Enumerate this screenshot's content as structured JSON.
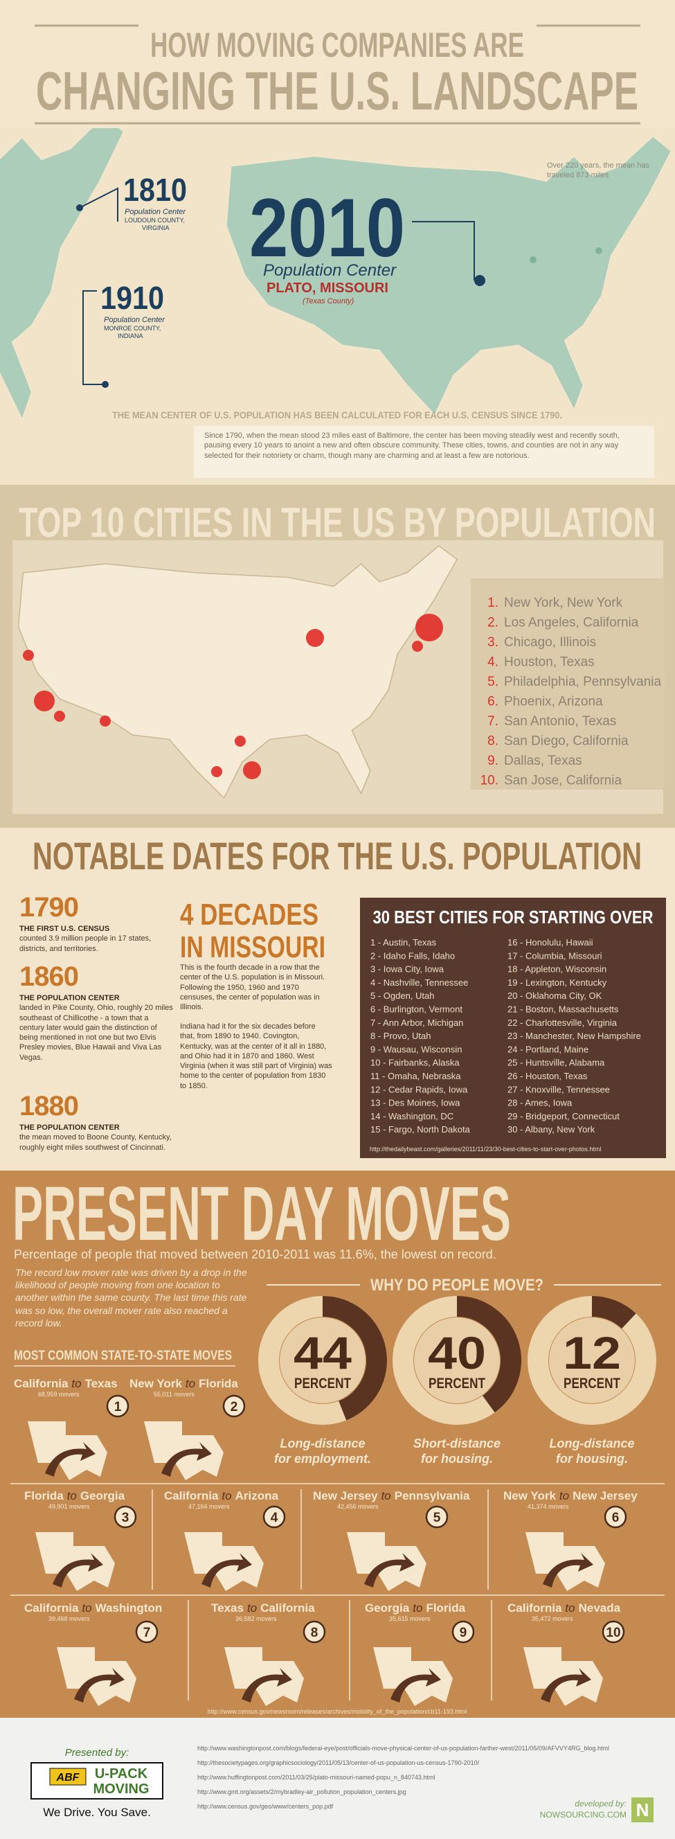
{
  "header": {
    "line1": "HOW MOVING COMPANIES ARE",
    "line2": "CHANGING THE U.S. LANDSCAPE"
  },
  "center": {
    "c1810": {
      "year": "1810",
      "label": "Population Center",
      "place1": "LOUDOUN COUNTY,",
      "place2": "VIRGINIA"
    },
    "c1910": {
      "year": "1910",
      "label": "Population Center",
      "place1": "MONROE COUNTY,",
      "place2": "INDIANA"
    },
    "c2010": {
      "year": "2010",
      "label": "Population Center",
      "place": "PLATO, MISSOURI",
      "county": "(Texas County)"
    },
    "note": "Over 220 years, the mean has traveled 873 miles",
    "heading": "THE MEAN CENTER OF U.S. POPULATION HAS BEEN CALCULATED FOR EACH U.S. CENSUS SINCE 1790.",
    "body": "Since 1790, when the mean stood 23 miles east of Baltimore, the center has been moving steadily west and recently south, pausing every 10 years to anoint a new and often obscure community. These cities, towns, and counties are not in any way selected for their notoriety or charm, though many are charming and at least a few are notorious."
  },
  "top10": {
    "title": "TOP 10 CITIES IN THE US BY POPULATION",
    "cities": [
      {
        "rank": "1.",
        "name": "New York, New York"
      },
      {
        "rank": "2.",
        "name": "Los Angeles, California"
      },
      {
        "rank": "3.",
        "name": "Chicago, Illinois"
      },
      {
        "rank": "4.",
        "name": "Houston, Texas"
      },
      {
        "rank": "5.",
        "name": "Philadelphia, Pennsylvania"
      },
      {
        "rank": "6.",
        "name": "Phoenix, Arizona"
      },
      {
        "rank": "7.",
        "name": "San Antonio, Texas"
      },
      {
        "rank": "8.",
        "name": "San Diego, California"
      },
      {
        "rank": "9.",
        "name": "Dallas, Texas"
      },
      {
        "rank": "10.",
        "name": "San Jose, California"
      }
    ]
  },
  "notable": {
    "title": "NOTABLE DATES FOR THE U.S. POPULATION",
    "entries": [
      {
        "year": "1790",
        "heading": "THE FIRST U.S. CENSUS",
        "text": "counted 3.9 million people in 17 states, districts, and territories."
      },
      {
        "year": "1860",
        "heading": "THE POPULATION CENTER",
        "text": "landed in Pike County, Ohio, roughly 20 miles southeast of Chillicothe - a town that a century later would gain the distinction of being mentioned in not one but two Elvis Presley movies, Blue Hawaii and Viva Las Vegas."
      },
      {
        "year": "1880",
        "heading": "THE POPULATION CENTER",
        "text": "the mean moved to Boone County, Kentucky, roughly eight miles southwest of Cincinnati."
      }
    ],
    "missouri": {
      "title1": "4 DECADES",
      "title2": "IN MISSOURI",
      "p1": "This is the fourth decade in a row that the center of the U.S. population is in Missouri. Following the 1950, 1960 and 1970 censuses, the center of population was in Illinois.",
      "p2": "Indiana had it for the six decades before that, from 1890 to 1940. Covington, Kentucky, was at the center of it all in 1880, and Ohio had it in 1870 and 1860. West Virginia (when it was still part of Virginia) was home to the center of population from 1830 to 1850."
    },
    "best": {
      "title": "30 BEST CITIES FOR STARTING OVER",
      "items": [
        "1 - Austin, Texas",
        "2 - Idaho Falls, Idaho",
        "3 - Iowa City, Iowa",
        "4 - Nashville, Tennessee",
        "5 - Ogden, Utah",
        "6 - Burlington, Vermont",
        "7 - Ann Arbor, Michigan",
        "8 - Provo, Utah",
        "9 - Wausau, Wisconsin",
        "10 - Fairbanks, Alaska",
        "11 - Omaha, Nebraska",
        "12 - Cedar Rapids, Iowa",
        "13 - Des Moines, Iowa",
        "14 - Washington, DC",
        "15 - Fargo, North Dakota",
        "16 - Honolulu, Hawaii",
        "17 - Columbia, Missouri",
        "18 - Appleton, Wisconsin",
        "19 - Lexington, Kentucky",
        "20 - Oklahoma City, OK",
        "21 - Boston, Massachusetts",
        "22 - Charlottesville, Virginia",
        "23 - Manchester, New Hampshire",
        "24 - Portland, Maine",
        "25 - Huntsville, Alabama",
        "26 - Houston, Texas",
        "27 - Knoxville, Tennessee",
        "28 - Ames, Iowa",
        "29 - Bridgeport, Connecticut",
        "30 - Albany, New York"
      ],
      "source": "http://thedailybeast.com/galleries/2011/11/23/30-best-cities-to-start-over-photos.html"
    }
  },
  "present": {
    "title": "PRESENT DAY MOVES",
    "subtitle": "Percentage of people that moved between 2010-2011 was 11.6%, the lowest on record.",
    "body": "The record low mover rate was driven by a drop in the likelihood of people moving from one location to another within the same county. The last time this rate was so low, the overall mover rate also reached a record low.",
    "why": {
      "title": "WHY DO PEOPLE MOVE?",
      "reasons": [
        {
          "value": 44,
          "unit": "PERCENT",
          "label1": "Long-distance",
          "label2": "for employment."
        },
        {
          "value": 40,
          "unit": "PERCENT",
          "label1": "Short-distance",
          "label2": "for housing."
        },
        {
          "value": 12,
          "unit": "PERCENT",
          "label1": "Long-distance",
          "label2": "for housing."
        }
      ]
    },
    "common_title": "MOST COMMON STATE-TO-STATE MOVES",
    "moves": [
      {
        "from": "California",
        "joiner": "to",
        "to": "Texas",
        "movers": "68,959 movers",
        "rank": "1"
      },
      {
        "from": "New York",
        "joiner": "to",
        "to": "Florida",
        "movers": "55,011 movers",
        "rank": "2"
      },
      {
        "from": "Florida",
        "joiner": "to",
        "to": "Georgia",
        "movers": "49,901 movers",
        "rank": "3"
      },
      {
        "from": "California",
        "joiner": "to",
        "to": "Arizona",
        "movers": "47,164 movers",
        "rank": "4"
      },
      {
        "from": "New Jersey",
        "joiner": "to",
        "to": "Pennsylvania",
        "movers": "42,456 movers",
        "rank": "5"
      },
      {
        "from": "New York",
        "joiner": "to",
        "to": "New Jersey",
        "movers": "41,374 movers",
        "rank": "6"
      },
      {
        "from": "California",
        "joiner": "to",
        "to": "Washington",
        "movers": "39,468 movers",
        "rank": "7"
      },
      {
        "from": "Texas",
        "joiner": "to",
        "to": "California",
        "movers": "36,582 movers",
        "rank": "8"
      },
      {
        "from": "Georgia",
        "joiner": "to",
        "to": "Florida",
        "movers": "35,615 movers",
        "rank": "9"
      },
      {
        "from": "California",
        "joiner": "to",
        "to": "Nevada",
        "movers": "35,472 movers",
        "rank": "10"
      }
    ],
    "source": "http://www.census.gov/newsroom/releases/archives/mobility_of_the_population/cb11-193.html"
  },
  "footer": {
    "presented": "Presented by:",
    "abf": "ABF",
    "brand1": "U-PACK",
    "brand2": "MOVING",
    "tagline": "We Drive. You Save.",
    "links": [
      "http://www.washingtonpost.com/blogs/federal-eye/post/officials-move-physical-center-of-us-population-farther-west/2011/05/09/AFVVY4RG_blog.html",
      "http://thesocietypages.org/graphicsociology/2011/05/13/center-of-us-population-us-census-1790-2010/",
      "http://www.huffingtonpost.com/2011/03/25/plato-missouri-named-popu_n_840743.html",
      "http://www.gmt.org/assets/2/mybradley-air_pollution_population_centers.jpg",
      "http://www.census.gov/geo/www/centers_pop.pdf"
    ],
    "developed": "developed by:",
    "dev_name": "NOWSOURCING.COM",
    "dev_logo": "N"
  }
}
